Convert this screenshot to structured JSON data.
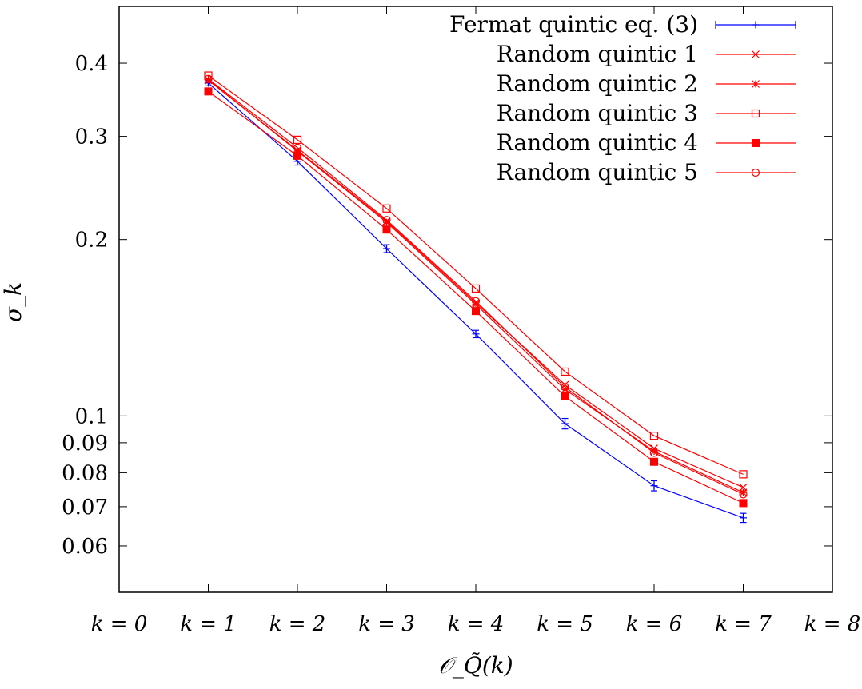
{
  "chart_data": {
    "type": "line",
    "title": "",
    "xlabel": "𝒪_Q̃(k)",
    "ylabel": "σ_k",
    "y_scale": "log",
    "xlim": [
      0,
      8
    ],
    "ylim": [
      0.05,
      0.5
    ],
    "grid": false,
    "legend_position": "top-right",
    "x_ticks": [
      {
        "value": 0,
        "label": "k = 0"
      },
      {
        "value": 1,
        "label": "k = 1"
      },
      {
        "value": 2,
        "label": "k = 2"
      },
      {
        "value": 3,
        "label": "k = 3"
      },
      {
        "value": 4,
        "label": "k = 4"
      },
      {
        "value": 5,
        "label": "k = 5"
      },
      {
        "value": 6,
        "label": "k = 6"
      },
      {
        "value": 7,
        "label": "k = 7"
      },
      {
        "value": 8,
        "label": "k = 8"
      }
    ],
    "y_ticks": [
      {
        "value": 0.06,
        "label": "0.06"
      },
      {
        "value": 0.07,
        "label": "0.07"
      },
      {
        "value": 0.08,
        "label": "0.08"
      },
      {
        "value": 0.09,
        "label": "0.09"
      },
      {
        "value": 0.1,
        "label": "0.1"
      },
      {
        "value": 0.2,
        "label": "0.2"
      },
      {
        "value": 0.3,
        "label": "0.3"
      },
      {
        "value": 0.4,
        "label": "0.4"
      }
    ],
    "x": [
      1,
      2,
      3,
      4,
      5,
      6,
      7
    ],
    "series": [
      {
        "name": "Fermat quintic eq. (3)",
        "color": "#0000ff",
        "marker": "plus-errorbar",
        "values": [
          0.37,
          0.272,
          0.193,
          0.138,
          0.097,
          0.076,
          0.067
        ],
        "errors": [
          0.004,
          0.004,
          0.003,
          0.002,
          0.002,
          0.0015,
          0.0012
        ]
      },
      {
        "name": "Random quintic 1",
        "color": "#ff0000",
        "marker": "cross",
        "values": [
          0.374,
          0.284,
          0.215,
          0.156,
          0.113,
          0.088,
          0.0755
        ]
      },
      {
        "name": "Random quintic 2",
        "color": "#ff0000",
        "marker": "star",
        "values": [
          0.375,
          0.283,
          0.214,
          0.155,
          0.111,
          0.087,
          0.074
        ]
      },
      {
        "name": "Random quintic 3",
        "color": "#ff0000",
        "marker": "open-square",
        "values": [
          0.381,
          0.296,
          0.226,
          0.165,
          0.119,
          0.0925,
          0.0795
        ]
      },
      {
        "name": "Random quintic 4",
        "color": "#ff0000",
        "marker": "filled-square",
        "values": [
          0.358,
          0.278,
          0.208,
          0.151,
          0.108,
          0.0835,
          0.071
        ]
      },
      {
        "name": "Random quintic 5",
        "color": "#ff0000",
        "marker": "open-circle",
        "values": [
          0.376,
          0.287,
          0.216,
          0.157,
          0.112,
          0.0865,
          0.0735
        ]
      }
    ]
  }
}
